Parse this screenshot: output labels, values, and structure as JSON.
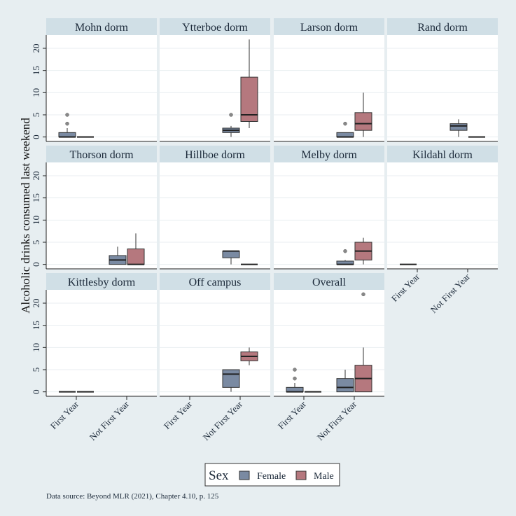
{
  "chart_data": {
    "type": "boxplot",
    "ylabel": "Alcoholic drinks consumed last weekend",
    "ylim": [
      -1,
      23
    ],
    "yticks": [
      0,
      5,
      10,
      15,
      20
    ],
    "categories": [
      "First Year",
      "Not First Year"
    ],
    "legend": {
      "title": "Sex",
      "placement": "bottom-center"
    },
    "series": [
      {
        "name": "Female",
        "color": "#7a8aa2"
      },
      {
        "name": "Male",
        "color": "#b5787e"
      }
    ],
    "grid": true,
    "note": "Data source: Beyond MLR (2021), Chapter 4.10, p. 125",
    "panels": [
      {
        "title": "Mohn dorm",
        "boxes": [
          {
            "category": "First Year",
            "sex": "Female",
            "q1": 0,
            "median": 0,
            "q3": 1,
            "whisker_low": 0,
            "whisker_high": 2,
            "outliers": [
              3,
              5
            ]
          },
          {
            "category": "First Year",
            "sex": "Male",
            "q1": 0,
            "median": 0,
            "q3": 0,
            "whisker_low": 0,
            "whisker_high": 0,
            "outliers": []
          }
        ]
      },
      {
        "title": "Ytterboe dorm",
        "boxes": [
          {
            "category": "Not First Year",
            "sex": "Female",
            "q1": 1,
            "median": 1.5,
            "q3": 2,
            "whisker_low": 0,
            "whisker_high": 2.5,
            "outliers": [
              5
            ]
          },
          {
            "category": "Not First Year",
            "sex": "Male",
            "q1": 3.5,
            "median": 5,
            "q3": 13.5,
            "whisker_low": 2,
            "whisker_high": 22,
            "outliers": []
          }
        ]
      },
      {
        "title": "Larson dorm",
        "boxes": [
          {
            "category": "Not First Year",
            "sex": "Female",
            "q1": 0,
            "median": 0,
            "q3": 1,
            "whisker_low": 0,
            "whisker_high": 1,
            "outliers": [
              3
            ]
          },
          {
            "category": "Not First Year",
            "sex": "Male",
            "q1": 1.5,
            "median": 3,
            "q3": 5.5,
            "whisker_low": 0,
            "whisker_high": 10,
            "outliers": []
          }
        ]
      },
      {
        "title": "Rand dorm",
        "boxes": [
          {
            "category": "Not First Year",
            "sex": "Female",
            "q1": 1.5,
            "median": 2.5,
            "q3": 3,
            "whisker_low": 0,
            "whisker_high": 4,
            "outliers": []
          },
          {
            "category": "Not First Year",
            "sex": "Male",
            "q1": 0,
            "median": 0,
            "q3": 0,
            "whisker_low": 0,
            "whisker_high": 0,
            "outliers": []
          }
        ]
      },
      {
        "title": "Thorson dorm",
        "boxes": [
          {
            "category": "Not First Year",
            "sex": "Female",
            "q1": 0,
            "median": 1,
            "q3": 2,
            "whisker_low": 0,
            "whisker_high": 4,
            "outliers": []
          },
          {
            "category": "Not First Year",
            "sex": "Male",
            "q1": 0,
            "median": 0,
            "q3": 3.5,
            "whisker_low": 0,
            "whisker_high": 7,
            "outliers": []
          }
        ]
      },
      {
        "title": "Hillboe dorm",
        "boxes": [
          {
            "category": "Not First Year",
            "sex": "Female",
            "q1": 1.5,
            "median": 3,
            "q3": 3,
            "whisker_low": 0,
            "whisker_high": 3,
            "outliers": []
          },
          {
            "category": "Not First Year",
            "sex": "Male",
            "q1": 0,
            "median": 0,
            "q3": 0,
            "whisker_low": 0,
            "whisker_high": 0,
            "outliers": []
          }
        ]
      },
      {
        "title": "Melby dorm",
        "boxes": [
          {
            "category": "Not First Year",
            "sex": "Female",
            "q1": 0,
            "median": 0,
            "q3": 0.75,
            "whisker_low": 0,
            "whisker_high": 1,
            "outliers": [
              3
            ]
          },
          {
            "category": "Not First Year",
            "sex": "Male",
            "q1": 1,
            "median": 3,
            "q3": 5,
            "whisker_low": 0,
            "whisker_high": 6,
            "outliers": []
          }
        ]
      },
      {
        "title": "Kildahl dorm",
        "boxes": [
          {
            "category": "First Year",
            "sex": "Female",
            "q1": 0,
            "median": 0,
            "q3": 0,
            "whisker_low": 0,
            "whisker_high": 0,
            "outliers": []
          }
        ]
      },
      {
        "title": "Kittlesby dorm",
        "boxes": [
          {
            "category": "First Year",
            "sex": "Female",
            "q1": 0,
            "median": 0,
            "q3": 0,
            "whisker_low": 0,
            "whisker_high": 0,
            "outliers": []
          },
          {
            "category": "First Year",
            "sex": "Male",
            "q1": 0,
            "median": 0,
            "q3": 0,
            "whisker_low": 0,
            "whisker_high": 0,
            "outliers": []
          }
        ]
      },
      {
        "title": "Off campus",
        "boxes": [
          {
            "category": "Not First Year",
            "sex": "Female",
            "q1": 1,
            "median": 4,
            "q3": 5,
            "whisker_low": 0,
            "whisker_high": 5,
            "outliers": []
          },
          {
            "category": "Not First Year",
            "sex": "Male",
            "q1": 7,
            "median": 8,
            "q3": 9,
            "whisker_low": 6,
            "whisker_high": 10,
            "outliers": []
          }
        ]
      },
      {
        "title": "Overall",
        "boxes": [
          {
            "category": "First Year",
            "sex": "Female",
            "q1": 0,
            "median": 0,
            "q3": 1,
            "whisker_low": 0,
            "whisker_high": 2,
            "outliers": [
              3,
              5
            ]
          },
          {
            "category": "First Year",
            "sex": "Male",
            "q1": 0,
            "median": 0,
            "q3": 0,
            "whisker_low": 0,
            "whisker_high": 0,
            "outliers": []
          },
          {
            "category": "Not First Year",
            "sex": "Female",
            "q1": 0,
            "median": 1,
            "q3": 3,
            "whisker_low": 0,
            "whisker_high": 5,
            "outliers": []
          },
          {
            "category": "Not First Year",
            "sex": "Male",
            "q1": 0,
            "median": 3,
            "q3": 6,
            "whisker_low": 0,
            "whisker_high": 10,
            "outliers": [
              22
            ]
          }
        ]
      }
    ]
  }
}
